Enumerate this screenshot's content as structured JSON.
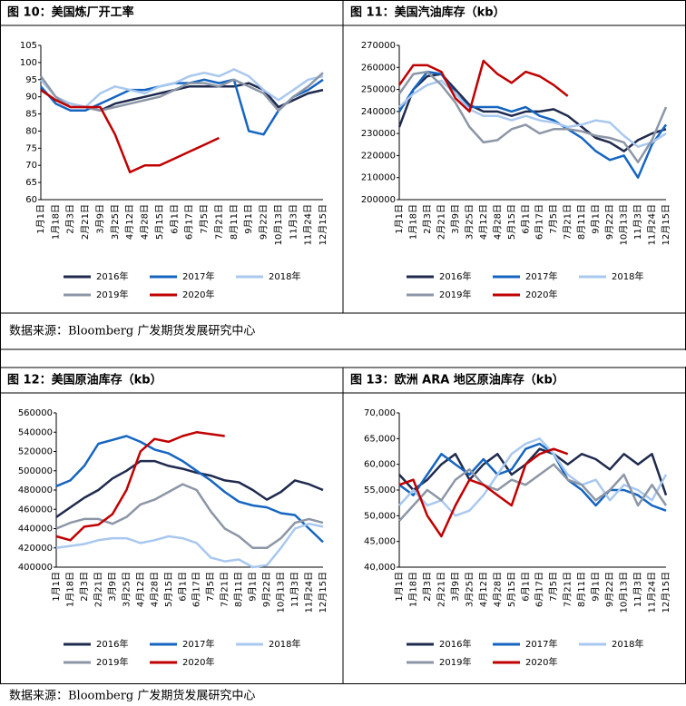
{
  "chart_data": [
    {
      "type": "line",
      "title": "图 10：美国炼厂开工率",
      "categories": [
        "1月1日",
        "1月18日",
        "2月3日",
        "2月21日",
        "3月9日",
        "3月25日",
        "4月12日",
        "4月28日",
        "5月15日",
        "6月1日",
        "6月17日",
        "7月5日",
        "7月21日",
        "8月11日",
        "9月1日",
        "9月22日",
        "10月13日",
        "11月3日",
        "11月24日",
        "12月15日"
      ],
      "ylim": [
        60,
        105
      ],
      "yticks": [
        60,
        65,
        70,
        75,
        80,
        85,
        90,
        95,
        100,
        105
      ],
      "series": [
        {
          "name": "2016年",
          "color": "#1f2a4e",
          "values": [
            92,
            89,
            88,
            87,
            86,
            88,
            89,
            90,
            91,
            92,
            93,
            93,
            93,
            93,
            94,
            92,
            87,
            89,
            91,
            92
          ]
        },
        {
          "name": "2017年",
          "color": "#1565c0",
          "values": [
            93,
            88,
            86,
            86,
            88,
            90,
            92,
            92,
            93,
            94,
            94,
            95,
            94,
            95,
            80,
            79,
            86,
            90,
            92,
            95
          ]
        },
        {
          "name": "2018年",
          "color": "#a9c8ef",
          "values": [
            95,
            90,
            88,
            87,
            91,
            93,
            92,
            91,
            93,
            94,
            96,
            97,
            96,
            98,
            96,
            92,
            89,
            92,
            95,
            96
          ]
        },
        {
          "name": "2019年",
          "color": "#8c96a6",
          "values": [
            96,
            90,
            87,
            87,
            86,
            87,
            88,
            89,
            90,
            92,
            94,
            94,
            93,
            95,
            93,
            91,
            86,
            90,
            93,
            97
          ]
        },
        {
          "name": "2020年",
          "color": "#c00000",
          "values": [
            92,
            89,
            87,
            87,
            87,
            79,
            68,
            70,
            70,
            72,
            74,
            76,
            78,
            null,
            null,
            null,
            null,
            null,
            null,
            null
          ]
        }
      ]
    },
    {
      "type": "line",
      "title": "图 11：美国汽油库存（kb）",
      "categories": [
        "1月1日",
        "1月18日",
        "2月3日",
        "2月21日",
        "3月9日",
        "3月25日",
        "4月12日",
        "4月28日",
        "5月15日",
        "6月1日",
        "6月17日",
        "7月5日",
        "7月21日",
        "8月11日",
        "9月1日",
        "9月22日",
        "10月13日",
        "11月3日",
        "11月24日",
        "12月15日"
      ],
      "ylim": [
        200000,
        270000
      ],
      "yticks": [
        200000,
        210000,
        220000,
        230000,
        240000,
        250000,
        260000,
        270000
      ],
      "series": [
        {
          "name": "2016年",
          "color": "#1f2a4e",
          "values": [
            233000,
            250000,
            256000,
            257000,
            250000,
            243000,
            240000,
            240000,
            238000,
            240000,
            240000,
            241000,
            238000,
            233000,
            228000,
            226000,
            222000,
            227000,
            230000,
            232000
          ]
        },
        {
          "name": "2017年",
          "color": "#1565c0",
          "values": [
            240000,
            250000,
            258000,
            257000,
            248000,
            242000,
            242000,
            242000,
            240000,
            242000,
            238000,
            236000,
            232000,
            228000,
            222000,
            218000,
            220000,
            210000,
            225000,
            234000
          ]
        },
        {
          "name": "2018年",
          "color": "#a9c8ef",
          "values": [
            242000,
            248000,
            252000,
            254000,
            248000,
            241000,
            238000,
            238000,
            236000,
            238000,
            236000,
            235000,
            233000,
            234000,
            236000,
            235000,
            229000,
            224000,
            226000,
            230000
          ]
        },
        {
          "name": "2019年",
          "color": "#8c96a6",
          "values": [
            248000,
            257000,
            258000,
            252000,
            244000,
            233000,
            226000,
            227000,
            232000,
            234000,
            230000,
            232000,
            232000,
            231000,
            229000,
            228000,
            226000,
            217000,
            227000,
            242000
          ]
        },
        {
          "name": "2020年",
          "color": "#c00000",
          "values": [
            252000,
            261000,
            261000,
            258000,
            246000,
            240000,
            263000,
            257000,
            253000,
            258000,
            256000,
            252000,
            247000,
            null,
            null,
            null,
            null,
            null,
            null,
            null
          ]
        }
      ]
    },
    {
      "type": "line",
      "title": "图 12：美国原油库存（kb）",
      "categories": [
        "1月1日",
        "1月18日",
        "2月3日",
        "2月21日",
        "3月9日",
        "3月25日",
        "4月12日",
        "4月28日",
        "5月15日",
        "6月1日",
        "6月17日",
        "7月5日",
        "7月21日",
        "8月11日",
        "9月1日",
        "9月22日",
        "10月13日",
        "11月3日",
        "11月24日",
        "12月15日"
      ],
      "ylim": [
        400000,
        560000
      ],
      "yticks": [
        400000,
        420000,
        440000,
        460000,
        480000,
        500000,
        520000,
        540000,
        560000
      ],
      "series": [
        {
          "name": "2016年",
          "color": "#1f2a4e",
          "values": [
            452000,
            462000,
            472000,
            480000,
            492000,
            500000,
            510000,
            510000,
            505000,
            502000,
            498000,
            495000,
            490000,
            488000,
            480000,
            470000,
            478000,
            490000,
            486000,
            480000
          ]
        },
        {
          "name": "2017年",
          "color": "#1565c0",
          "values": [
            484000,
            490000,
            505000,
            528000,
            532000,
            536000,
            530000,
            522000,
            518000,
            510000,
            500000,
            490000,
            478000,
            468000,
            464000,
            462000,
            456000,
            454000,
            440000,
            426000
          ]
        },
        {
          "name": "2018年",
          "color": "#a9c8ef",
          "values": [
            420000,
            422000,
            424000,
            428000,
            430000,
            430000,
            425000,
            428000,
            432000,
            430000,
            425000,
            410000,
            406000,
            408000,
            400000,
            402000,
            420000,
            440000,
            445000,
            442000
          ]
        },
        {
          "name": "2019年",
          "color": "#8c96a6",
          "values": [
            440000,
            446000,
            450000,
            450000,
            445000,
            452000,
            465000,
            470000,
            478000,
            486000,
            480000,
            458000,
            440000,
            432000,
            420000,
            420000,
            430000,
            446000,
            450000,
            446000
          ]
        },
        {
          "name": "2020年",
          "color": "#c00000",
          "values": [
            432000,
            428000,
            442000,
            444000,
            455000,
            480000,
            520000,
            533000,
            530000,
            536000,
            540000,
            538000,
            536000,
            null,
            null,
            null,
            null,
            null,
            null,
            null
          ]
        }
      ]
    },
    {
      "type": "line",
      "title": "图 13：欧洲 ARA 地区原油库存（kb）",
      "categories": [
        "1月1日",
        "1月18日",
        "2月3日",
        "2月21日",
        "3月9日",
        "3月25日",
        "4月12日",
        "4月28日",
        "5月15日",
        "6月1日",
        "6月17日",
        "7月5日",
        "7月21日",
        "8月11日",
        "9月1日",
        "9月22日",
        "10月13日",
        "11月3日",
        "11月24日",
        "12月15日"
      ],
      "ylim": [
        40000,
        70000
      ],
      "yticks": [
        {
          "value": 40000,
          "label": "40,000"
        },
        {
          "value": 45000,
          "label": "45,000"
        },
        {
          "value": 50000,
          "label": "50,000"
        },
        {
          "value": 55000,
          "label": "55,000"
        },
        {
          "value": 60000,
          "label": "60,000"
        },
        {
          "value": 65000,
          "label": "65,000"
        },
        {
          "value": 70000,
          "label": "70,000"
        }
      ],
      "series": [
        {
          "name": "2016年",
          "color": "#1f2a4e",
          "values": [
            58000,
            55000,
            57000,
            60000,
            62000,
            57000,
            60000,
            62000,
            58000,
            60000,
            63000,
            62000,
            60000,
            62000,
            61000,
            59000,
            62000,
            60000,
            62000,
            54000
          ]
        },
        {
          "name": "2017年",
          "color": "#1565c0",
          "values": [
            56000,
            54000,
            58000,
            62000,
            60000,
            58000,
            61000,
            58000,
            59000,
            63000,
            64000,
            62000,
            57000,
            55000,
            52000,
            55000,
            55000,
            54000,
            52000,
            51000
          ]
        },
        {
          "name": "2018年",
          "color": "#a9c8ef",
          "values": [
            52000,
            55000,
            52000,
            53000,
            50000,
            51000,
            54000,
            58000,
            62000,
            64000,
            65000,
            62000,
            58000,
            56000,
            57000,
            53000,
            56000,
            55000,
            53000,
            58000
          ]
        },
        {
          "name": "2019年",
          "color": "#8c96a6",
          "values": [
            49000,
            52000,
            55000,
            53000,
            57000,
            59000,
            56000,
            55000,
            57000,
            56000,
            58000,
            60000,
            57000,
            56000,
            53000,
            55000,
            58000,
            52000,
            56000,
            52000
          ]
        },
        {
          "name": "2020年",
          "color": "#c00000",
          "values": [
            56000,
            57000,
            50000,
            46000,
            52000,
            57000,
            56000,
            54000,
            52000,
            60000,
            62000,
            63000,
            62000,
            null,
            null,
            null,
            null,
            null,
            null,
            null
          ]
        }
      ]
    }
  ],
  "sources": [
    "数据来源：Bloomberg 广发期货发展研究中心",
    "数据来源：Bloomberg 广发期货发展研究中心"
  ]
}
